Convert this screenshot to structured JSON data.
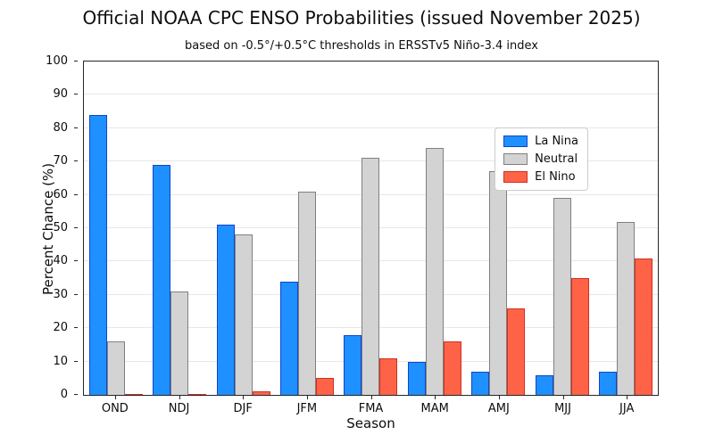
{
  "title": "Official NOAA CPC ENSO Probabilities (issued November 2025)",
  "subtitle": "based on -0.5°/+0.5°C thresholds in ERSSTv5 Niño-3.4 index",
  "chart_data": {
    "type": "bar",
    "title": "Official NOAA CPC ENSO Probabilities (issued November 2025)",
    "subtitle": "based on -0.5°/+0.5°C thresholds in ERSSTv5 Niño-3.4 index",
    "xlabel": "Season",
    "ylabel": "Percent Chance (%)",
    "categories": [
      "OND",
      "NDJ",
      "DJF",
      "JFM",
      "FMA",
      "MAM",
      "AMJ",
      "MJJ",
      "JJA"
    ],
    "series": [
      {
        "name": "La Nina",
        "fill": "#1e90ff",
        "edge": "#1245cc",
        "values": [
          84,
          69,
          51,
          34,
          18,
          10,
          7,
          6,
          7
        ]
      },
      {
        "name": "Neutral",
        "fill": "#d3d3d3",
        "edge": "#808080",
        "values": [
          16,
          31,
          48,
          61,
          71,
          74,
          67,
          59,
          52
        ]
      },
      {
        "name": "El Nino",
        "fill": "#ff6347",
        "edge": "#cf2f1f",
        "values": [
          0,
          0,
          1,
          5,
          11,
          16,
          26,
          35,
          41
        ]
      }
    ],
    "ylim": [
      0,
      100
    ],
    "yticks": [
      0,
      10,
      20,
      30,
      40,
      50,
      60,
      70,
      80,
      90,
      100
    ],
    "grid": true,
    "legend_position": "upper right"
  }
}
